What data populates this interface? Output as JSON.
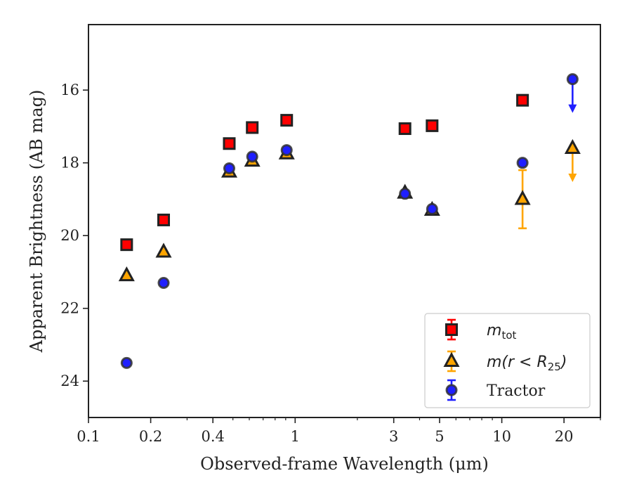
{
  "chart_data": {
    "type": "scatter",
    "title": "",
    "xlabel": "Observed-frame Wavelength (μm)",
    "ylabel": "Apparent Brightness (AB mag)",
    "xscale": "log",
    "xlim": [
      0.1,
      30
    ],
    "ylim": [
      25,
      14.2
    ],
    "y_inverted": true,
    "grid": false,
    "legend_position": "bottom-right",
    "xticks": [
      0.1,
      0.2,
      0.4,
      1,
      3,
      5,
      10,
      20
    ],
    "xtick_labels": [
      "0.1",
      "0.2",
      "0.4",
      "1",
      "3",
      "5",
      "10",
      "20"
    ],
    "yticks": [
      16,
      18,
      20,
      22,
      24
    ],
    "ytick_labels": [
      "16",
      "18",
      "20",
      "22",
      "24"
    ],
    "series": [
      {
        "name": "m_tot",
        "legend_label": {
          "base": "m",
          "sub": "tot"
        },
        "marker": "square",
        "color": "#ff0000",
        "edge_color": "#222222",
        "x": [
          0.153,
          0.231,
          0.48,
          0.62,
          0.91,
          3.4,
          4.6,
          12.6
        ],
        "y": [
          20.25,
          19.57,
          17.47,
          17.03,
          16.83,
          17.06,
          16.98,
          16.28
        ],
        "upper_limit": [
          false,
          false,
          false,
          false,
          false,
          false,
          false,
          false
        ],
        "yerr": [
          0,
          0,
          0,
          0,
          0,
          0,
          0,
          0
        ]
      },
      {
        "name": "m(r<R25)",
        "legend_label": {
          "base": "m(r < R",
          "sub": "25",
          "tail": ")"
        },
        "marker": "triangle",
        "color": "#ffa500",
        "edge_color": "#222222",
        "x": [
          0.153,
          0.231,
          0.48,
          0.62,
          0.91,
          3.4,
          4.6,
          12.6,
          22.0
        ],
        "y": [
          21.1,
          20.45,
          18.25,
          17.95,
          17.75,
          18.83,
          19.3,
          19.0,
          17.6
        ],
        "upper_limit": [
          false,
          false,
          false,
          false,
          false,
          false,
          false,
          false,
          true
        ],
        "yerr": [
          0,
          0,
          0,
          0,
          0,
          0,
          0,
          0.8,
          0
        ]
      },
      {
        "name": "Tractor",
        "marker": "circle",
        "color": "#1f1fff",
        "edge_color": "#333333",
        "x": [
          0.153,
          0.231,
          0.48,
          0.62,
          0.91,
          3.4,
          4.6,
          12.6,
          22.0
        ],
        "y": [
          23.5,
          21.3,
          18.15,
          17.83,
          17.65,
          18.85,
          19.27,
          18.0,
          15.7
        ],
        "upper_limit": [
          false,
          false,
          false,
          false,
          false,
          false,
          false,
          false,
          true
        ],
        "yerr": [
          0,
          0,
          0,
          0,
          0,
          0,
          0,
          0,
          0
        ]
      }
    ]
  }
}
